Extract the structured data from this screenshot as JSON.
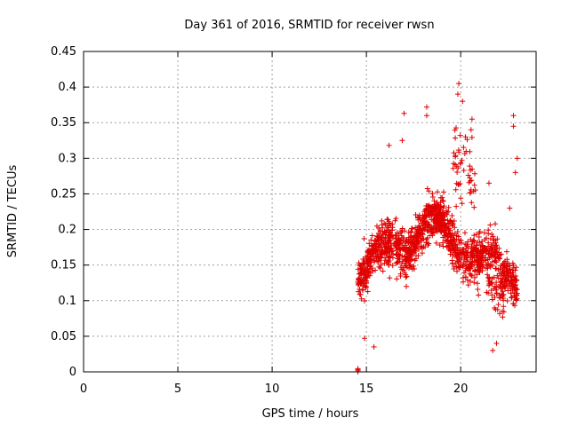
{
  "chart_data": {
    "type": "scatter",
    "title": "Day 361 of 2016, SRMTID for receiver rwsn",
    "xlabel": "GPS time / hours",
    "ylabel": "SRMTID / TECUs",
    "xlim": [
      0,
      24
    ],
    "ylim": [
      0,
      0.45
    ],
    "x_ticks": [
      0,
      5,
      10,
      15,
      20
    ],
    "x_tick_labels": [
      "0",
      "5",
      "10",
      "15",
      "20"
    ],
    "y_ticks": [
      0,
      0.05,
      0.1,
      0.15,
      0.2,
      0.25,
      0.3,
      0.35,
      0.4,
      0.45
    ],
    "y_tick_labels": [
      "0",
      "0.05",
      "0.1",
      "0.15",
      "0.2",
      "0.25",
      "0.3",
      "0.35",
      "0.4",
      "0.45"
    ],
    "grid": true,
    "marker": "+",
    "colors": {
      "series": "#e00000",
      "grid": "#a0a0a0",
      "axis": "#000000"
    },
    "series": [
      {
        "name": "SRMTID",
        "x_range": [
          14.55,
          23.0
        ],
        "y_range": [
          0.0,
          0.405
        ],
        "n_points": 1400,
        "cluster_at_zero": {
          "x": 14.55,
          "y": 0.0
        },
        "notable_points": [
          {
            "x": 19.9,
            "y": 0.405
          },
          {
            "x": 19.85,
            "y": 0.39
          },
          {
            "x": 20.1,
            "y": 0.38
          },
          {
            "x": 18.2,
            "y": 0.372
          },
          {
            "x": 18.2,
            "y": 0.36
          },
          {
            "x": 17.0,
            "y": 0.363
          },
          {
            "x": 22.8,
            "y": 0.36
          },
          {
            "x": 20.6,
            "y": 0.355
          },
          {
            "x": 22.8,
            "y": 0.345
          },
          {
            "x": 20.55,
            "y": 0.34
          },
          {
            "x": 16.2,
            "y": 0.318
          },
          {
            "x": 16.9,
            "y": 0.325
          },
          {
            "x": 23.0,
            "y": 0.3
          },
          {
            "x": 22.9,
            "y": 0.28
          },
          {
            "x": 21.5,
            "y": 0.265
          },
          {
            "x": 22.6,
            "y": 0.23
          },
          {
            "x": 21.7,
            "y": 0.03
          },
          {
            "x": 21.9,
            "y": 0.04
          },
          {
            "x": 15.4,
            "y": 0.035
          },
          {
            "x": 14.9,
            "y": 0.047
          }
        ]
      }
    ]
  }
}
